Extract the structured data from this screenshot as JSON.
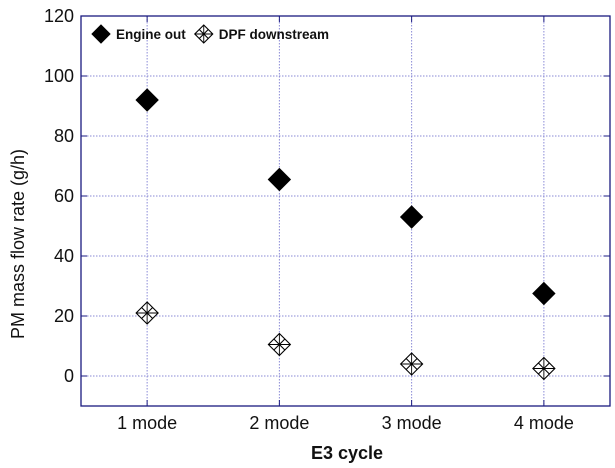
{
  "chart_data": {
    "type": "scatter",
    "xlabel": "E3 cycle",
    "ylabel": "PM mass flow rate (g/h)",
    "categories": [
      "1 mode",
      "2 mode",
      "3 mode",
      "4 mode"
    ],
    "ylim": [
      -10,
      120
    ],
    "yticks": [
      0,
      20,
      40,
      60,
      80,
      100,
      120
    ],
    "grid": true,
    "legend_position": "top-left",
    "series": [
      {
        "name": "Engine out",
        "marker": "filled-diamond",
        "values": [
          92,
          65.5,
          53,
          27.5
        ]
      },
      {
        "name": "DPF downstream",
        "marker": "crossed-diamond",
        "values": [
          21,
          10.5,
          4,
          2.5
        ]
      }
    ],
    "colors": {
      "frame": "#1a1a80",
      "grid": "#8a8ad6",
      "marker": "#000000"
    }
  }
}
